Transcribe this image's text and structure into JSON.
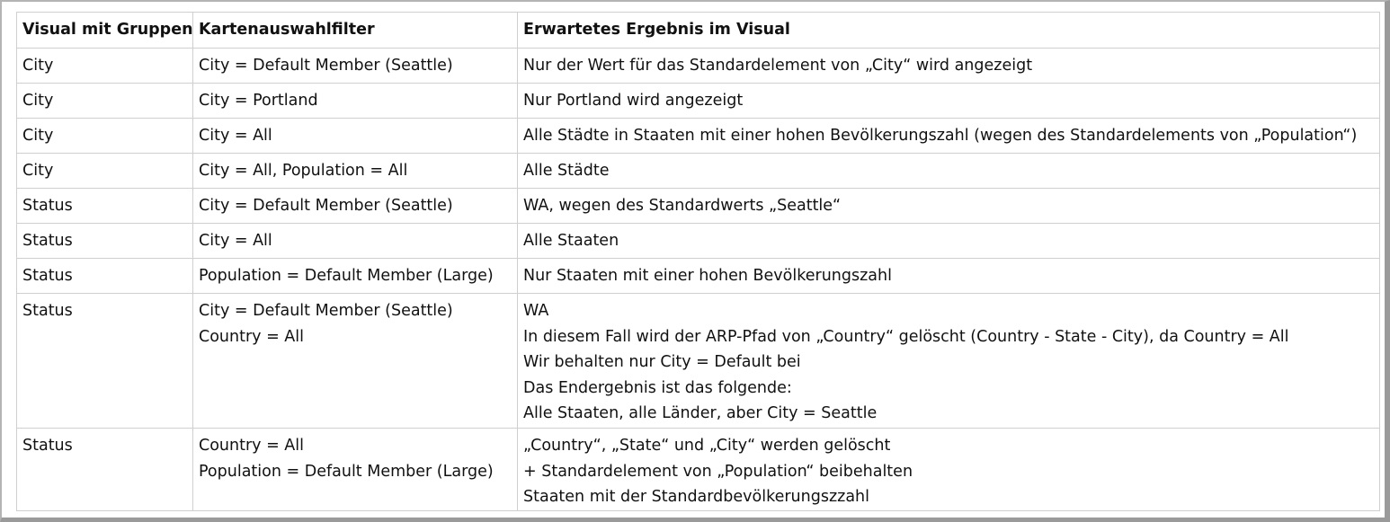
{
  "table": {
    "headers": [
      "Visual mit Gruppen",
      "Kartenauswahlfilter",
      "Erwartetes Ergebnis im Visual"
    ],
    "rows": [
      {
        "group": "City",
        "filter": [
          "City = Default Member (Seattle)"
        ],
        "result": [
          "Nur der Wert für das Standardelement von „City“ wird angezeigt"
        ]
      },
      {
        "group": "City",
        "filter": [
          "City = Portland"
        ],
        "result": [
          "Nur Portland wird angezeigt"
        ]
      },
      {
        "group": "City",
        "filter": [
          "City = All"
        ],
        "result": [
          "Alle Städte in Staaten mit einer hohen Bevölkerungszahl (wegen des Standardelements von „Population“)"
        ]
      },
      {
        "group": "City",
        "filter": [
          "City = All, Population = All"
        ],
        "result": [
          "Alle Städte"
        ]
      },
      {
        "group": "Status",
        "filter": [
          "City = Default Member (Seattle)"
        ],
        "result": [
          "WA, wegen des Standardwerts „Seattle“"
        ]
      },
      {
        "group": "Status",
        "filter": [
          "City = All"
        ],
        "result": [
          "Alle Staaten"
        ]
      },
      {
        "group": "Status",
        "filter": [
          "Population = Default Member (Large)"
        ],
        "result": [
          "Nur Staaten mit einer hohen Bevölkerungszahl"
        ]
      },
      {
        "group": "Status",
        "filter": [
          "City = Default Member (Seattle)",
          "Country = All"
        ],
        "result": [
          "WA",
          "In diesem Fall wird der ARP-Pfad von „Country“ gelöscht (Country - State - City), da Country = All",
          "Wir behalten nur City = Default bei",
          "Das Endergebnis ist das folgende:",
          "Alle Staaten, alle Länder, aber City = Seattle"
        ]
      },
      {
        "group": "Status",
        "filter": [
          "Country = All",
          "Population = Default Member (Large)"
        ],
        "result": [
          "„Country“, „State“ und „City“ werden gelöscht",
          "+ Standardelement von „Population“ beibehalten",
          "Staaten mit der Standardbevölkerungszzahl"
        ]
      }
    ]
  }
}
